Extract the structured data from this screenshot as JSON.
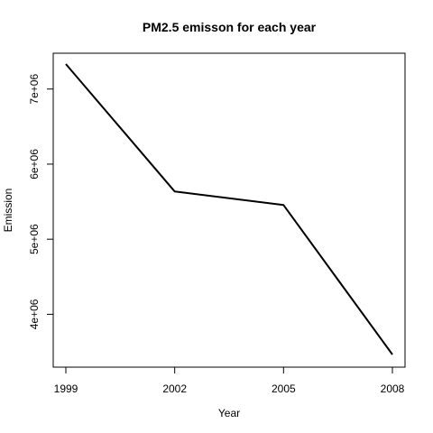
{
  "chart_data": {
    "type": "line",
    "title": "PM2.5 emisson for each year",
    "xlabel": "Year",
    "ylabel": "Emission",
    "x": [
      1999,
      2002,
      2005,
      2008
    ],
    "y": [
      7332967,
      5635780,
      5454703,
      3464206
    ],
    "xlim": [
      1999,
      2008
    ],
    "ylim": [
      3464206,
      7332967
    ],
    "xticks": [
      1999,
      2002,
      2005,
      2008
    ],
    "xtick_labels": [
      "1999",
      "2002",
      "2005",
      "2008"
    ],
    "yticks": [
      4000000,
      5000000,
      6000000,
      7000000
    ],
    "ytick_labels": [
      "4e+06",
      "5e+06",
      "6e+06",
      "7e+06"
    ],
    "grid": false,
    "line_color": "#000000"
  }
}
